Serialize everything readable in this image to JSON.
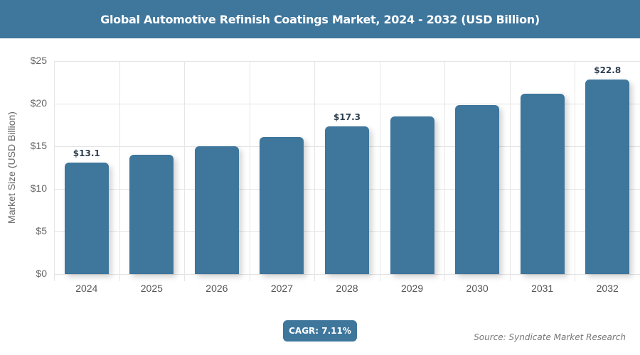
{
  "header": {
    "title": "Global Automotive Refinish Coatings Market, 2024 - 2032 (USD Billion)"
  },
  "chart_data": {
    "type": "bar",
    "title": "Global Automotive Refinish Coatings Market, 2024 - 2032 (USD Billion)",
    "xlabel": "",
    "ylabel": "Market Size (USD Billion)",
    "categories": [
      "2024",
      "2025",
      "2026",
      "2027",
      "2028",
      "2029",
      "2030",
      "2031",
      "2032"
    ],
    "values": [
      13.1,
      14.0,
      15.0,
      16.1,
      17.3,
      18.5,
      19.8,
      21.2,
      22.8
    ],
    "data_labels": {
      "0": "$13.1",
      "4": "$17.3",
      "8": "$22.8"
    },
    "ylim": [
      0,
      25
    ],
    "yticks": [
      "$0",
      "$5",
      "$10",
      "$15",
      "$20",
      "$25"
    ],
    "grid": true,
    "bar_color": "#3e769c"
  },
  "footer": {
    "cagr_label": "CAGR: 7.11%",
    "source": "Source: Syndicate Market Research"
  }
}
